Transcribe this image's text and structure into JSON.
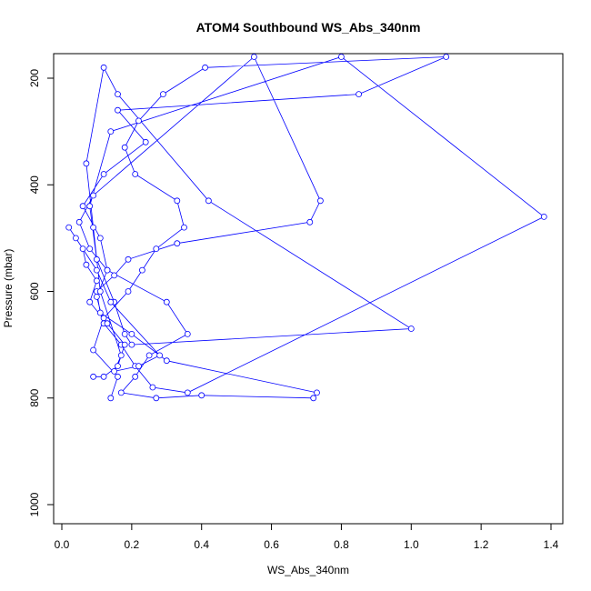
{
  "chart_data": {
    "type": "line",
    "title": "ATOM4 Southbound WS_Abs_340nm",
    "xlabel": "WS_Abs_340nm",
    "ylabel": "Pressure (mbar)",
    "xlim": [
      0.0,
      1.4
    ],
    "ylim": [
      1030,
      160
    ],
    "y_reversed": true,
    "x_ticks": [
      0.0,
      0.2,
      0.4,
      0.6,
      0.8,
      1.0,
      1.2,
      1.4
    ],
    "x_tick_labels": [
      "0.0",
      "0.2",
      "0.4",
      "0.6",
      "0.8",
      "1.0",
      "1.2",
      "1.4"
    ],
    "y_ticks": [
      200,
      400,
      600,
      800,
      1000
    ],
    "y_tick_labels": [
      "200",
      "400",
      "600",
      "800",
      "1000"
    ],
    "grid": false,
    "legend": "none",
    "series_color": "#0000ff",
    "marker": "open-circle",
    "series": [
      {
        "x": [
          0.14,
          0.16,
          0.09,
          0.12,
          0.19,
          0.23,
          0.27,
          0.35,
          0.33,
          0.21,
          0.18,
          0.22,
          0.29,
          0.41,
          1.1,
          0.85,
          0.16,
          0.24,
          0.12,
          0.06,
          0.11,
          0.13,
          0.3,
          0.36,
          0.25,
          0.21,
          0.17,
          0.27,
          0.4,
          0.72,
          0.73,
          0.3,
          0.2,
          0.11,
          0.1,
          0.15,
          0.19,
          0.33,
          0.71,
          0.74,
          0.55,
          0.09,
          0.05,
          0.08,
          0.13,
          0.1,
          0.12,
          0.17,
          0.21,
          0.26,
          0.36,
          1.38,
          0.8,
          0.14,
          0.08,
          0.1,
          0.15,
          0.18,
          0.2,
          1.0,
          0.42,
          0.16,
          0.12,
          0.07,
          0.09,
          0.11,
          0.17,
          0.15,
          0.22,
          0.28,
          0.14,
          0.1,
          0.04,
          0.02,
          0.06,
          0.07,
          0.1,
          0.08,
          0.13,
          0.18,
          0.16,
          0.12,
          0.09
        ],
        "y": [
          800,
          760,
          710,
          650,
          600,
          560,
          520,
          480,
          430,
          380,
          330,
          280,
          230,
          180,
          160,
          230,
          260,
          320,
          380,
          440,
          500,
          560,
          620,
          680,
          720,
          760,
          790,
          800,
          795,
          800,
          790,
          730,
          680,
          640,
          600,
          570,
          540,
          510,
          470,
          430,
          160,
          420,
          470,
          520,
          560,
          610,
          660,
          700,
          740,
          780,
          790,
          460,
          160,
          300,
          440,
          540,
          620,
          680,
          700,
          670,
          430,
          230,
          180,
          360,
          480,
          600,
          720,
          750,
          740,
          720,
          620,
          560,
          500,
          480,
          520,
          550,
          580,
          620,
          660,
          700,
          740,
          760,
          760
        ]
      }
    ]
  }
}
